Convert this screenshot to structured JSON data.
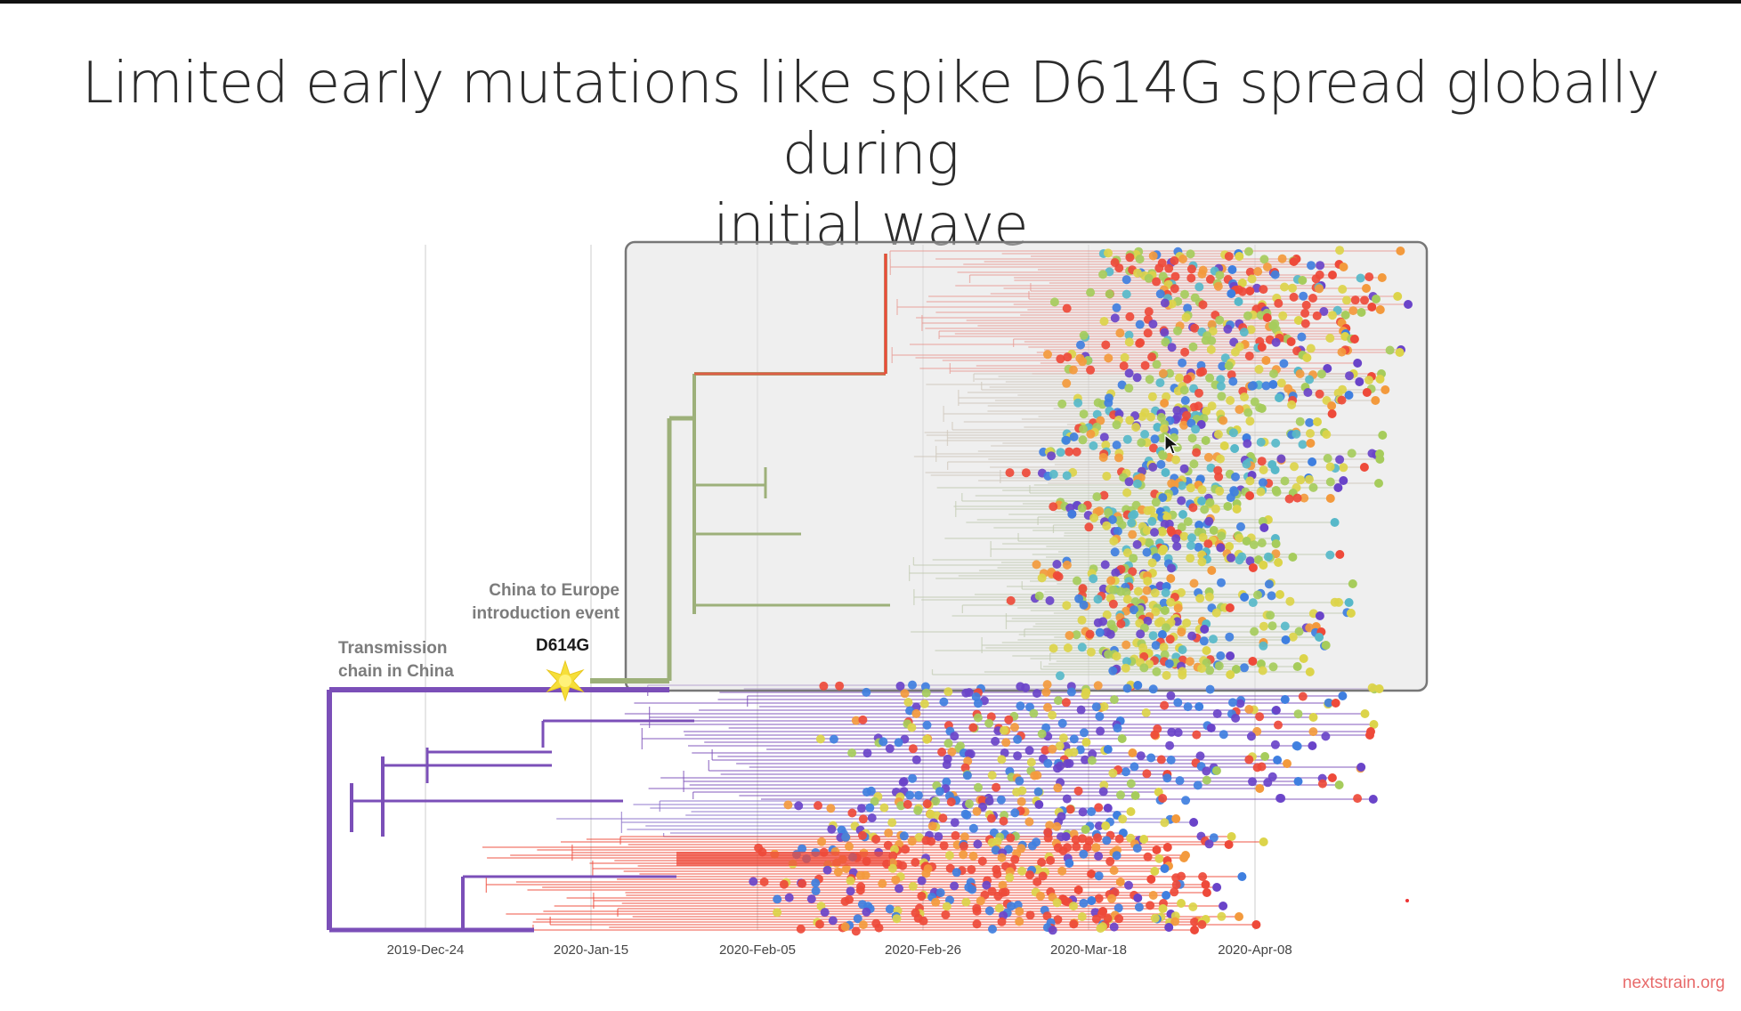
{
  "slide": {
    "title_line1": "Limited early mutations like spike D614G spread globally during",
    "title_line2": "initial wave",
    "credit": "nextstrain.org"
  },
  "figure": {
    "annotations": {
      "intro_line1": "China to Europe",
      "intro_line2": "introduction event",
      "mutation": "D614G",
      "chain_line1": "Transmission",
      "chain_line2": "chain in China"
    },
    "time_axis": [
      "2019-Dec-24",
      "2020-Jan-15",
      "2020-Feb-05",
      "2020-Feb-26",
      "2020-Mar-18",
      "2020-Apr-08"
    ],
    "colors": {
      "china_purple": "#7b4fb8",
      "europe_green": "#9db07a",
      "red": "#ee4a3a",
      "orange": "#f39a3d",
      "yellow": "#dcd44a",
      "green": "#a6cc5c",
      "blue": "#3f7fe0",
      "violet": "#6a44c9",
      "teal": "#57b8c9",
      "highlight_box": "#e2e2e2"
    },
    "icons": {
      "mutation_marker": "starburst-icon",
      "pointer": "mouse-cursor-icon"
    }
  }
}
